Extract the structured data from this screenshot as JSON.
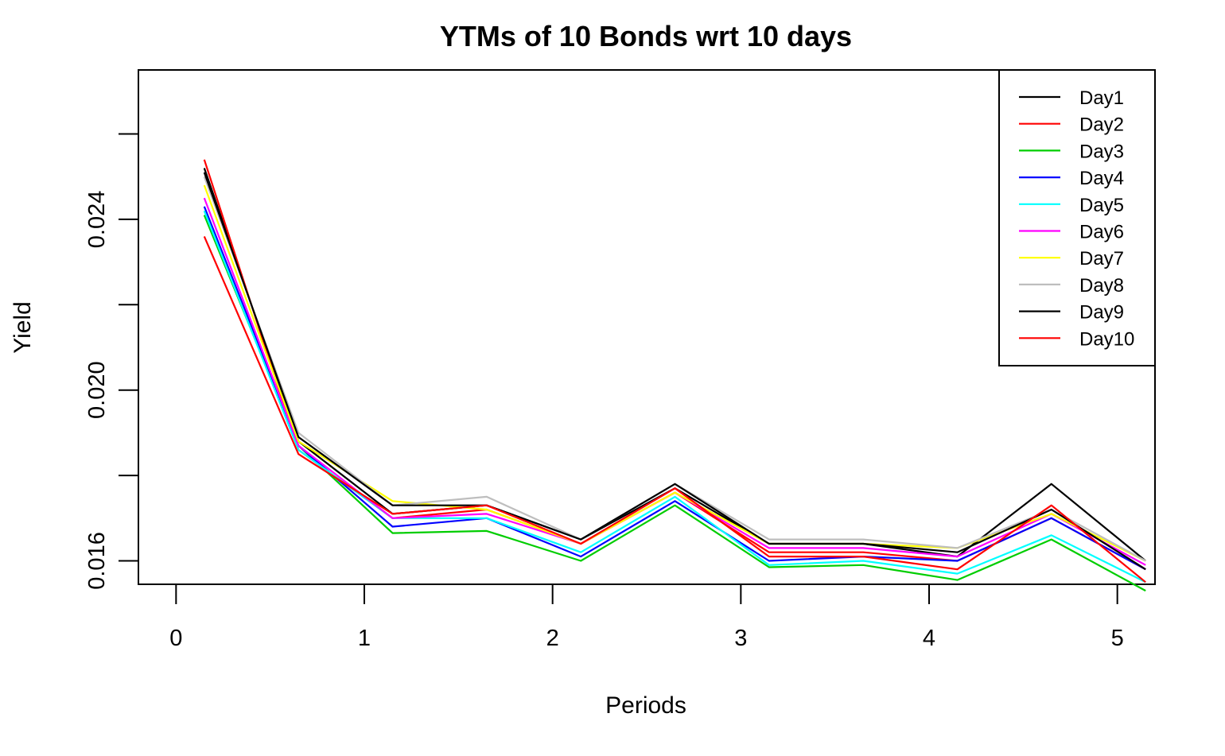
{
  "chart_data": {
    "type": "line",
    "title": "YTMs of 10 Bonds wrt 10 days",
    "xlabel": "Periods",
    "ylabel": "Yield",
    "xlim": [
      -0.2,
      5.2
    ],
    "ylim": [
      0.01545,
      0.0275
    ],
    "x_ticks": [
      "0",
      "1",
      "2",
      "3",
      "4",
      "5"
    ],
    "y_ticks": [
      "0.016",
      "0.020",
      "0.024"
    ],
    "y_minor_ticks": [
      0.018,
      0.022,
      0.026
    ],
    "grid": false,
    "legend_position": "top-right",
    "x": [
      0.15,
      0.65,
      1.15,
      1.65,
      2.15,
      2.65,
      3.15,
      3.65,
      4.15,
      4.65,
      5.15
    ],
    "series": [
      {
        "name": "Day1",
        "color": "#000000",
        "values": [
          0.0252,
          0.0188,
          0.0171,
          0.0173,
          0.0165,
          0.0177,
          0.0164,
          0.0164,
          0.0161,
          0.0178,
          0.016
        ]
      },
      {
        "name": "Day2",
        "color": "#FF0000",
        "values": [
          0.0254,
          0.0186,
          0.017,
          0.0172,
          0.0164,
          0.0176,
          0.0162,
          0.0162,
          0.016,
          0.017,
          0.0158
        ]
      },
      {
        "name": "Day3",
        "color": "#00CD00",
        "values": [
          0.0241,
          0.0187,
          0.01665,
          0.0167,
          0.016,
          0.0173,
          0.01585,
          0.0159,
          0.01555,
          0.0165,
          0.0153
        ]
      },
      {
        "name": "Day4",
        "color": "#0000FF",
        "values": [
          0.0243,
          0.0187,
          0.0168,
          0.017,
          0.0161,
          0.0174,
          0.016,
          0.0161,
          0.016,
          0.017,
          0.0158
        ]
      },
      {
        "name": "Day5",
        "color": "#00FFFF",
        "values": [
          0.0242,
          0.0186,
          0.017,
          0.017,
          0.0162,
          0.0175,
          0.0159,
          0.016,
          0.0157,
          0.0166,
          0.0155
        ]
      },
      {
        "name": "Day6",
        "color": "#FF00FF",
        "values": [
          0.0245,
          0.0187,
          0.017,
          0.0171,
          0.0164,
          0.0176,
          0.0163,
          0.0163,
          0.0161,
          0.0171,
          0.0159
        ]
      },
      {
        "name": "Day7",
        "color": "#FFFF00",
        "values": [
          0.0248,
          0.0188,
          0.0174,
          0.0172,
          0.0164,
          0.0176,
          0.0164,
          0.0164,
          0.0163,
          0.0171,
          0.016
        ]
      },
      {
        "name": "Day8",
        "color": "#BEBEBE",
        "values": [
          0.025,
          0.019,
          0.0173,
          0.0175,
          0.0165,
          0.0178,
          0.0165,
          0.0165,
          0.0163,
          0.0172,
          0.016
        ]
      },
      {
        "name": "Day9",
        "color": "#000000",
        "values": [
          0.0251,
          0.0189,
          0.0173,
          0.0173,
          0.0165,
          0.0178,
          0.0164,
          0.0164,
          0.0162,
          0.0172,
          0.0158
        ]
      },
      {
        "name": "Day10",
        "color": "#FF0000",
        "values": [
          0.0236,
          0.0185,
          0.0171,
          0.0173,
          0.0164,
          0.0177,
          0.0161,
          0.0161,
          0.0158,
          0.0173,
          0.0155
        ]
      }
    ]
  }
}
